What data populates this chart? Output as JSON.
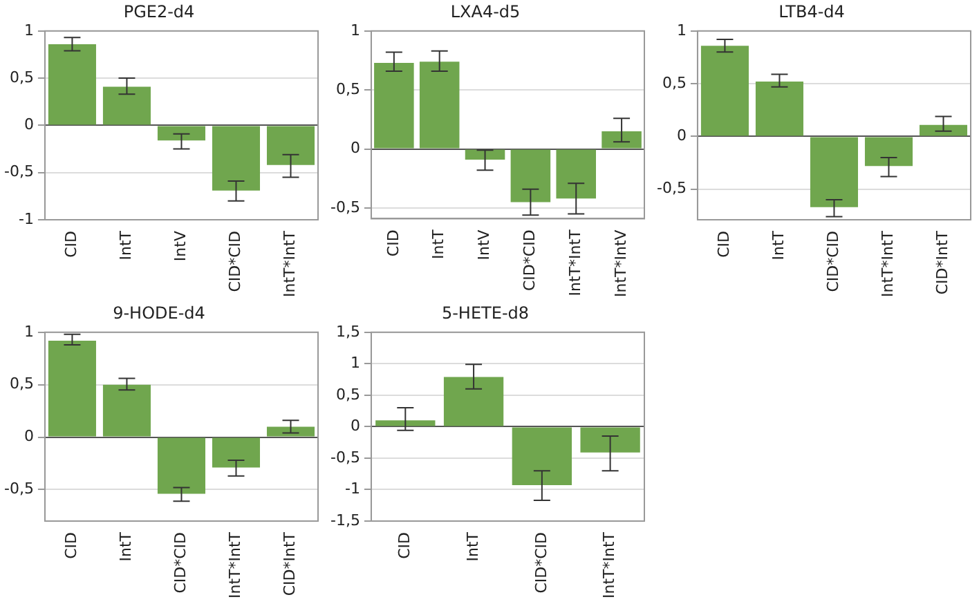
{
  "chart_data": [
    {
      "type": "bar",
      "title": "PGE2-d4",
      "categories": [
        "CID",
        "IntT",
        "IntV",
        "CID*CID",
        "IntT*IntT"
      ],
      "values": [
        0.86,
        0.41,
        -0.16,
        -0.69,
        -0.42
      ],
      "errors": [
        [
          0.79,
          0.93
        ],
        [
          0.33,
          0.5
        ],
        [
          -0.25,
          -0.09
        ],
        [
          -0.8,
          -0.59
        ],
        [
          -0.55,
          -0.31
        ]
      ],
      "color": "#70a64e",
      "ylim": [
        -1,
        1
      ],
      "yticks": [
        -1,
        {
          "value": -0.5,
          "label": "-0,5"
        },
        0,
        {
          "value": 0.5,
          "label": "0,5"
        },
        1
      ],
      "grid": "y"
    },
    {
      "type": "bar",
      "title": "LXA4-d5",
      "categories": [
        "CID",
        "IntT",
        "IntV",
        "CID*CID",
        "IntT*IntT",
        "IntT*IntV"
      ],
      "values": [
        0.73,
        0.74,
        -0.09,
        -0.45,
        -0.42,
        0.15
      ],
      "errors": [
        [
          0.66,
          0.82
        ],
        [
          0.66,
          0.83
        ],
        [
          -0.18,
          -0.01
        ],
        [
          -0.56,
          -0.34
        ],
        [
          -0.55,
          -0.29
        ],
        [
          0.06,
          0.26
        ]
      ],
      "color": "#70a64e",
      "ylim": [
        -0.59,
        1
      ],
      "yticks": [
        {
          "value": -0.5,
          "label": "-0,5"
        },
        0,
        {
          "value": 0.5,
          "label": "0,5"
        },
        1
      ],
      "grid": "y"
    },
    {
      "type": "bar",
      "title": "LTB4-d4",
      "categories": [
        "CID",
        "IntT",
        "CID*CID",
        "IntT*IntT",
        "CID*IntT"
      ],
      "values": [
        0.86,
        0.52,
        -0.67,
        -0.28,
        0.11
      ],
      "errors": [
        [
          0.8,
          0.92
        ],
        [
          0.47,
          0.59
        ],
        [
          -0.76,
          -0.6
        ],
        [
          -0.38,
          -0.2
        ],
        [
          0.05,
          0.19
        ]
      ],
      "color": "#70a64e",
      "ylim": [
        -0.79,
        1
      ],
      "yticks": [
        {
          "value": -0.5,
          "label": "-0,5"
        },
        0,
        {
          "value": 0.5,
          "label": "0,5"
        },
        1
      ],
      "grid": "y"
    },
    {
      "type": "bar",
      "title": "9-HODE-d4",
      "categories": [
        "CID",
        "IntT",
        "CID*CID",
        "IntT*IntT",
        "CID*IntT"
      ],
      "values": [
        0.92,
        0.5,
        -0.54,
        -0.29,
        0.1
      ],
      "errors": [
        [
          0.88,
          0.98
        ],
        [
          0.45,
          0.56
        ],
        [
          -0.61,
          -0.48
        ],
        [
          -0.37,
          -0.22
        ],
        [
          0.04,
          0.16
        ]
      ],
      "color": "#70a64e",
      "ylim": [
        -0.8,
        1
      ],
      "yticks": [
        {
          "value": -0.5,
          "label": "-0,5"
        },
        0,
        {
          "value": 0.5,
          "label": "0,5"
        },
        1
      ],
      "grid": "y"
    },
    {
      "type": "bar",
      "title": "5-HETE-d8",
      "categories": [
        "CID",
        "IntT",
        "CID*CID",
        "IntT*IntT"
      ],
      "values": [
        0.1,
        0.79,
        -0.93,
        -0.41
      ],
      "errors": [
        [
          -0.06,
          0.3
        ],
        [
          0.6,
          0.99
        ],
        [
          -1.17,
          -0.7
        ],
        [
          -0.7,
          -0.15
        ]
      ],
      "color": "#70a64e",
      "ylim": [
        -1.5,
        1.5
      ],
      "yticks": [
        {
          "value": -1.5,
          "label": "-1,5"
        },
        -1,
        {
          "value": -0.5,
          "label": "-0,5"
        },
        0,
        {
          "value": 0.5,
          "label": "0,5"
        },
        1,
        {
          "value": 1.5,
          "label": "1,5"
        }
      ],
      "grid": "y"
    }
  ]
}
